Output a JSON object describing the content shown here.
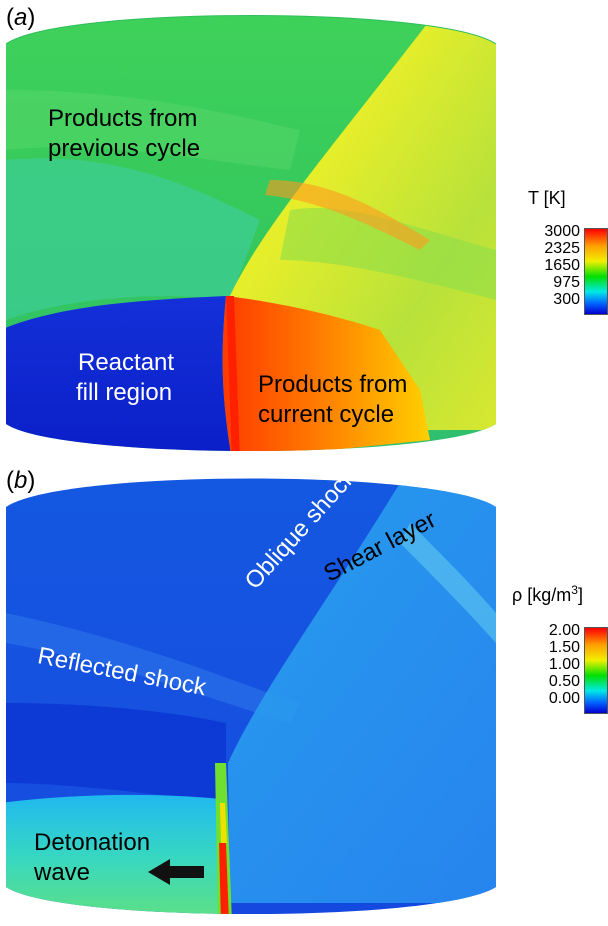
{
  "panel_a": {
    "label": "a",
    "annotations": {
      "products_previous": [
        "Products from",
        "previous cycle"
      ],
      "reactant_fill": [
        "Reactant",
        "fill region"
      ],
      "products_current": [
        "Products from",
        "current cycle"
      ]
    },
    "colorbar": {
      "title": "T [K]",
      "ticks": [
        "3000",
        "2325",
        "1650",
        "975",
        "300"
      ]
    }
  },
  "panel_b": {
    "label": "b",
    "annotations": {
      "oblique_shock": "Oblique shock",
      "shear_layer": "Shear layer",
      "reflected_shock": "Reflected shock",
      "detonation_wave": [
        "Detonation",
        "wave"
      ]
    },
    "colorbar": {
      "title_prefix": "ρ [kg/m",
      "title_sup": "3",
      "title_suffix": "]",
      "ticks": [
        "2.00",
        "1.50",
        "1.00",
        "0.50",
        "0.00"
      ]
    }
  },
  "colors": {
    "cold_blue": "#0a1ecf",
    "hot_red": "#ff3300",
    "mid_green": "#33cc55",
    "yellow": "#f0f000",
    "light_blue": "#2a9cf0"
  }
}
